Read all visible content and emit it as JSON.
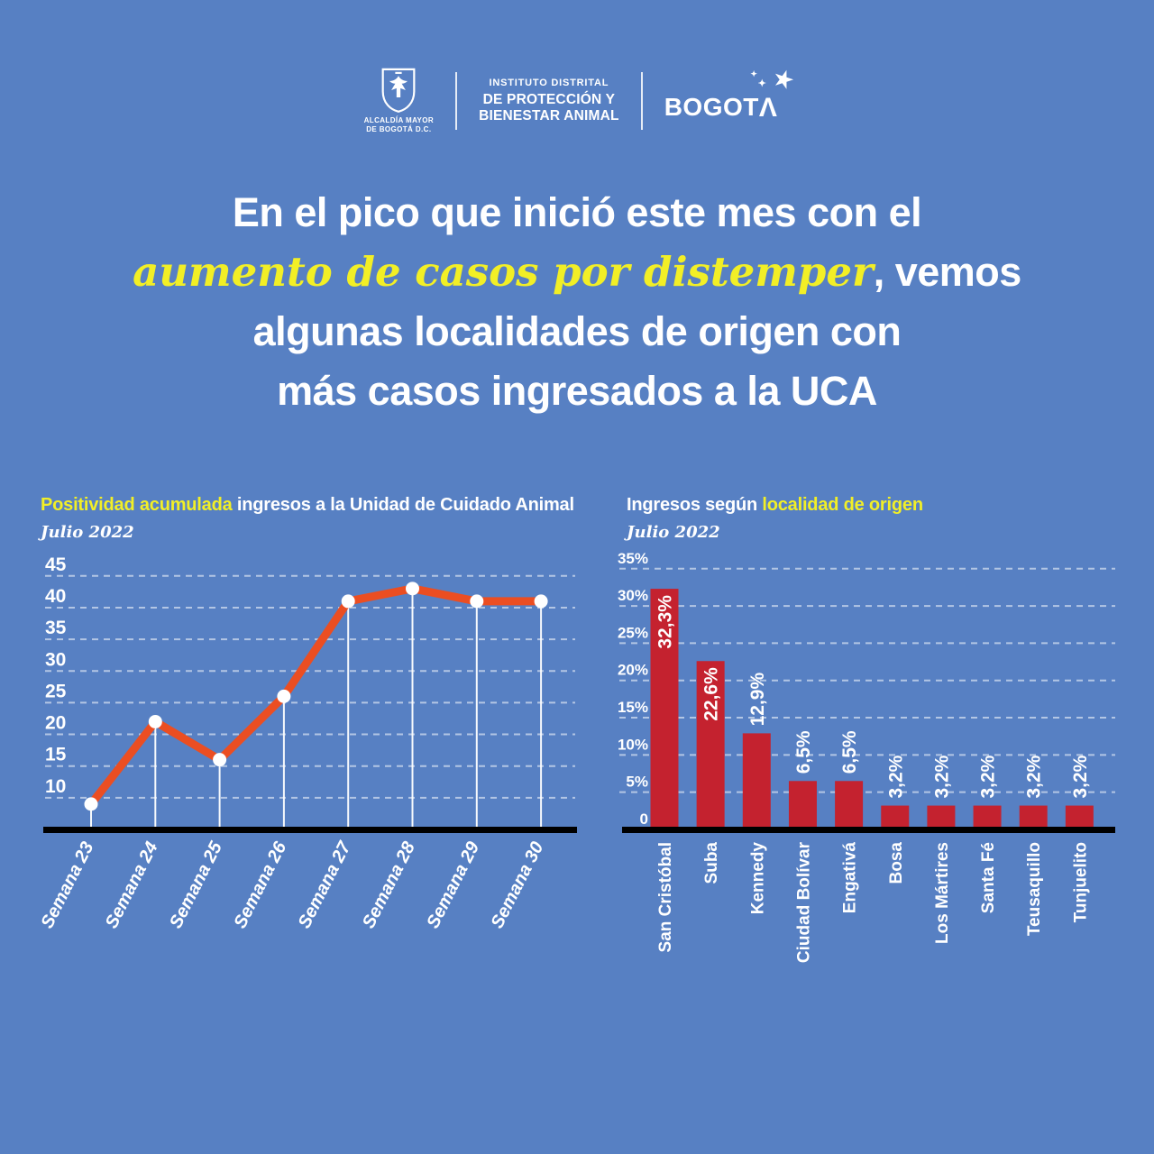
{
  "colors": {
    "background": "#5780C3",
    "accent_yellow": "#F2EF26",
    "line_orange": "#EB4E22",
    "bar_red": "#C4222F",
    "text_white": "#FFFFFF",
    "axis_black": "#000000"
  },
  "header": {
    "alcaldia": {
      "caption_line1": "ALCALDÍA MAYOR",
      "caption_line2": "DE BOGOTÁ D.C."
    },
    "institute": {
      "line1": "INSTITUTO DISTRITAL",
      "line2": "DE PROTECCIÓN Y",
      "line3": "BIENESTAR ANIMAL"
    },
    "bogota": {
      "wordmark": "BOGOT",
      "lambda": "Λ",
      "star_big": "★",
      "star_small1": "✦",
      "star_small2": "✦"
    }
  },
  "headline": {
    "line1": "En el pico que inició este mes con el",
    "line2_highlight": "aumento de casos por distemper",
    "line2_rest": ", vemos",
    "line3": "algunas localidades de origen con",
    "line4": "más casos ingresados a la UCA"
  },
  "chart_data": [
    {
      "type": "line",
      "title_highlight": "Positividad acumulada",
      "title_rest": " ingresos a la Unidad de Cuidado Animal",
      "subtitle": "Julio 2022",
      "categories": [
        "Semana 23",
        "Semana 24",
        "Semana 25",
        "Semana 26",
        "Semana 27",
        "Semana 28",
        "Semana 29",
        "Semana 30"
      ],
      "values": [
        9,
        22,
        16,
        26,
        41,
        43,
        41,
        41
      ],
      "yticks": [
        10,
        15,
        20,
        25,
        30,
        35,
        40,
        45
      ],
      "ylim": [
        5,
        45
      ],
      "grid": "dashed-horizontal",
      "legend": "none",
      "line_color": "#EB4E22",
      "marker_color": "#FFFFFF"
    },
    {
      "type": "bar",
      "title_prefix": "Ingresos según ",
      "title_highlight": "localidad de origen",
      "subtitle": "Julio 2022",
      "categories": [
        "San Cristóbal",
        "Suba",
        "Kennedy",
        "Ciudad Bolívar",
        "Engativá",
        "Bosa",
        "Los Mártires",
        "Santa Fé",
        "Teusaquillo",
        "Tunjuelito"
      ],
      "values": [
        32.3,
        22.6,
        12.9,
        6.5,
        6.5,
        3.2,
        3.2,
        3.2,
        3.2,
        3.2
      ],
      "value_labels": [
        "32,3%",
        "22,6%",
        "12,9%",
        "6,5%",
        "6,5%",
        "3,2%",
        "3,2%",
        "3,2%",
        "3,2%",
        "3,2%"
      ],
      "ytick_labels": [
        "0",
        "5%",
        "10%",
        "15%",
        "20%",
        "25%",
        "30%",
        "35%"
      ],
      "ylim": [
        0,
        35
      ],
      "grid": "dashed-horizontal",
      "legend": "none",
      "bar_color": "#C4222F"
    }
  ]
}
